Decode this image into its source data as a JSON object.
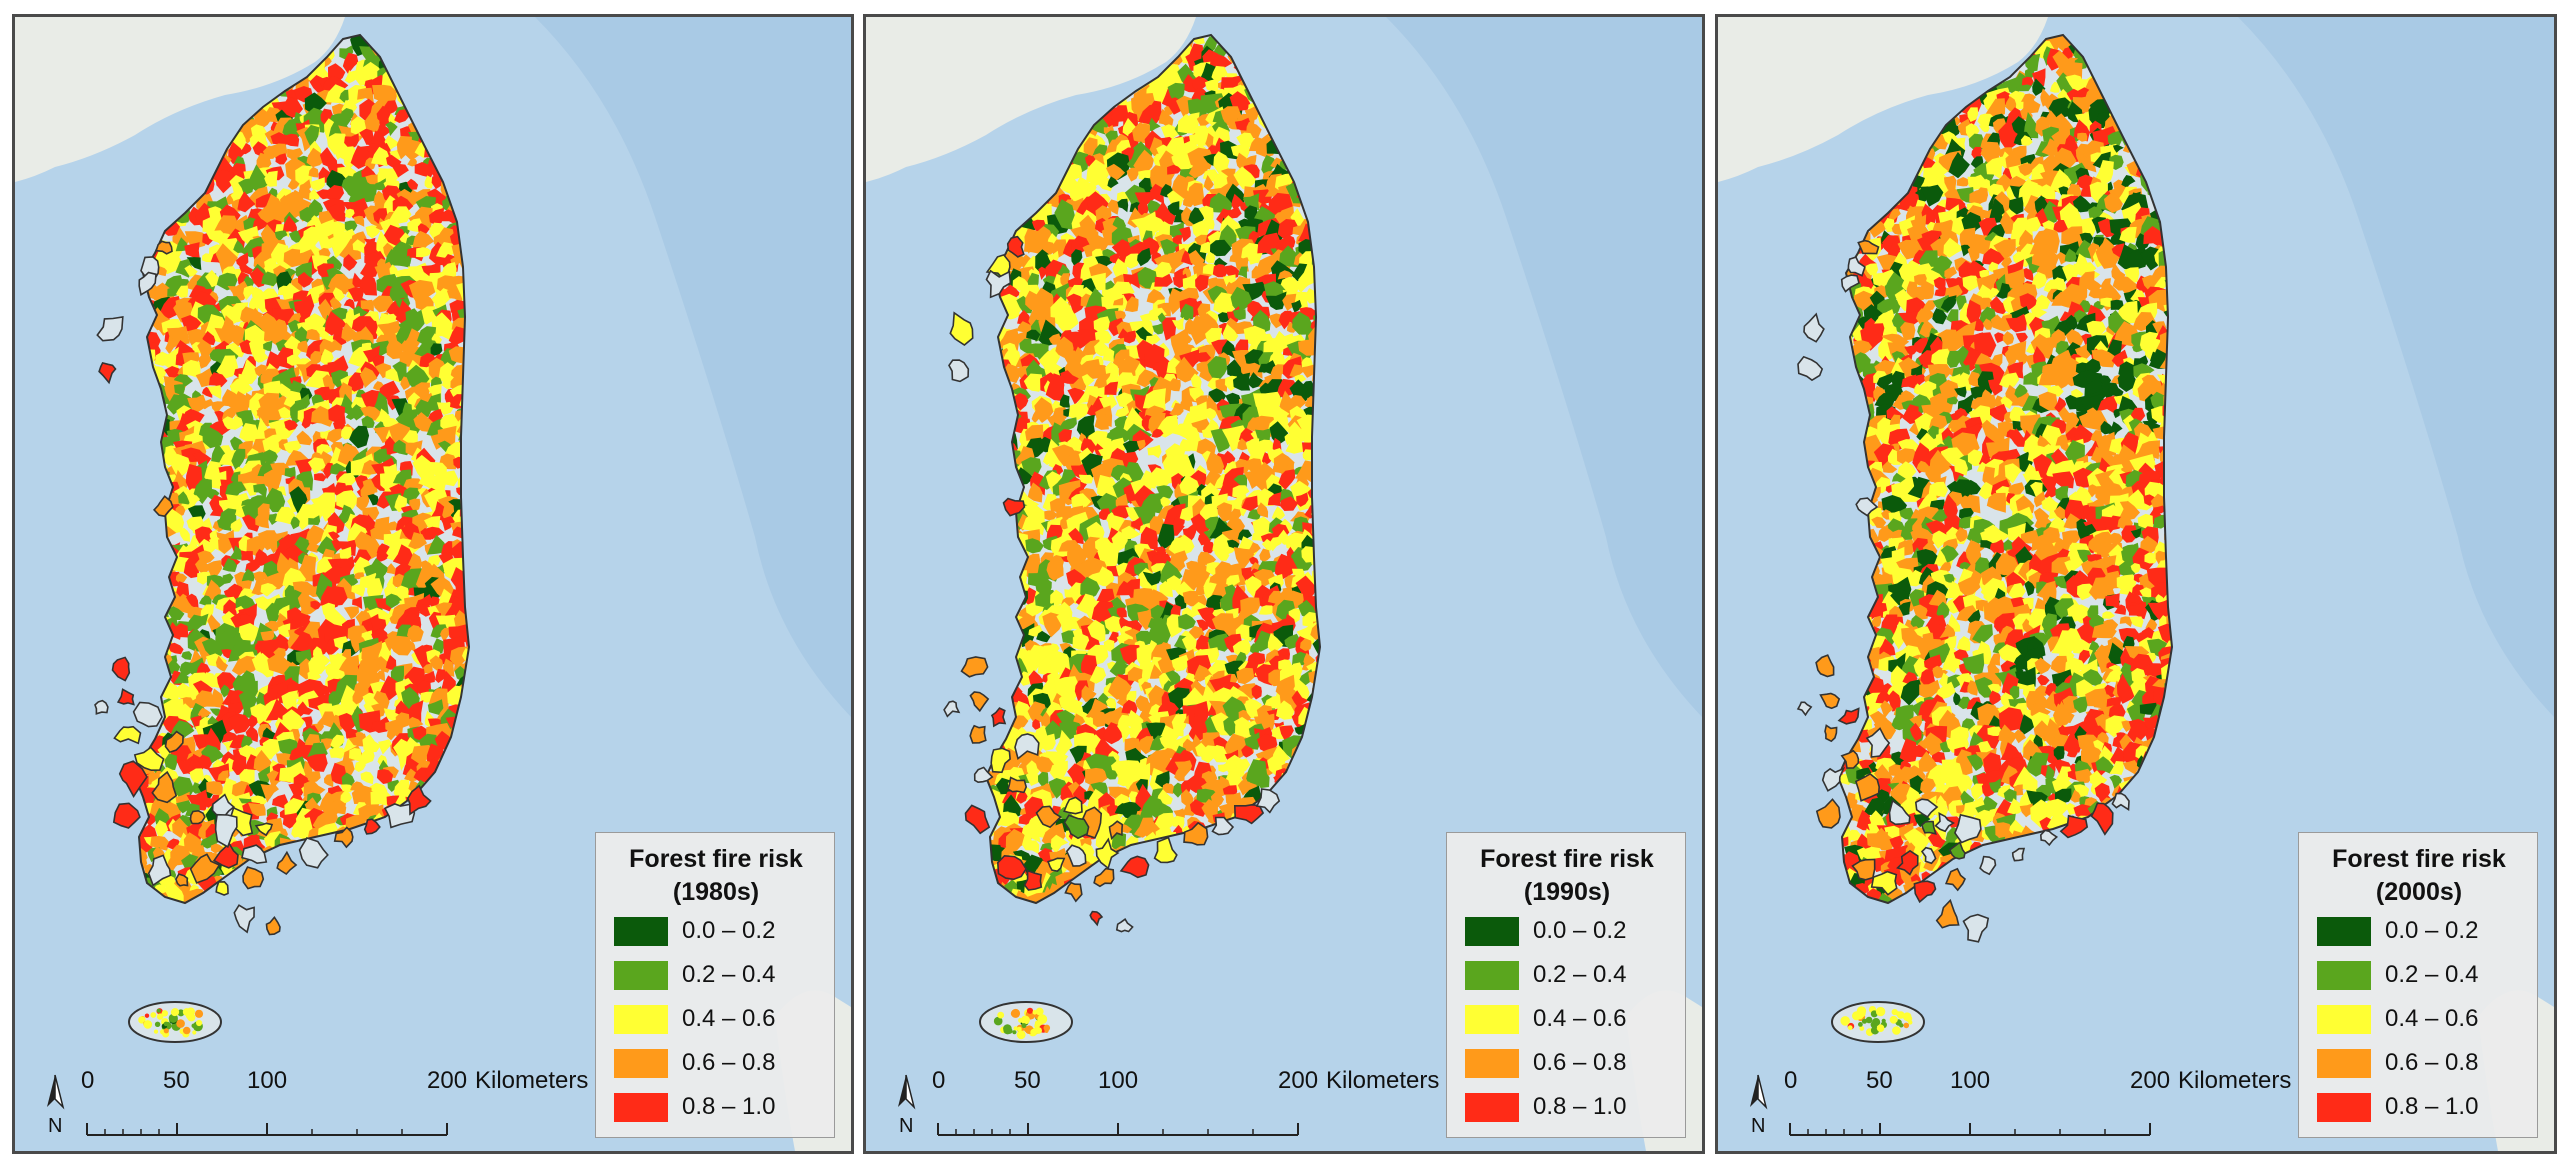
{
  "panels": [
    {
      "legend_title": "Forest fire risk",
      "period": "(1980s)",
      "weights": {
        "dark_green": 0.03,
        "green": 0.15,
        "yellow": 0.28,
        "orange": 0.28,
        "red": 0.26
      }
    },
    {
      "legend_title": "Forest fire risk",
      "period": "(1990s)",
      "weights": {
        "dark_green": 0.06,
        "green": 0.12,
        "yellow": 0.3,
        "orange": 0.32,
        "red": 0.2
      }
    },
    {
      "legend_title": "Forest fire risk",
      "period": "(2000s)",
      "weights": {
        "dark_green": 0.09,
        "green": 0.13,
        "yellow": 0.24,
        "orange": 0.34,
        "red": 0.2
      }
    }
  ],
  "legend_classes": [
    {
      "range": "0.0 – 0.2",
      "color": "#0b5a0b"
    },
    {
      "range": "0.2 – 0.4",
      "color": "#5aa61e"
    },
    {
      "range": "0.4 – 0.6",
      "color": "#ffff33"
    },
    {
      "range": "0.6 – 0.8",
      "color": "#ff9a1a"
    },
    {
      "range": "0.8 – 1.0",
      "color": "#ff2b17"
    }
  ],
  "scale_bar": {
    "ticks": [
      "0",
      "50",
      "100",
      "200"
    ],
    "unit": "Kilometers",
    "north_label": "N"
  },
  "colors": {
    "sea": "#b6d3ea",
    "land_outside": "#e9ece7",
    "no_data": "#d9e4ea",
    "outline": "#333333"
  },
  "icons": [
    "north-arrow-icon"
  ]
}
